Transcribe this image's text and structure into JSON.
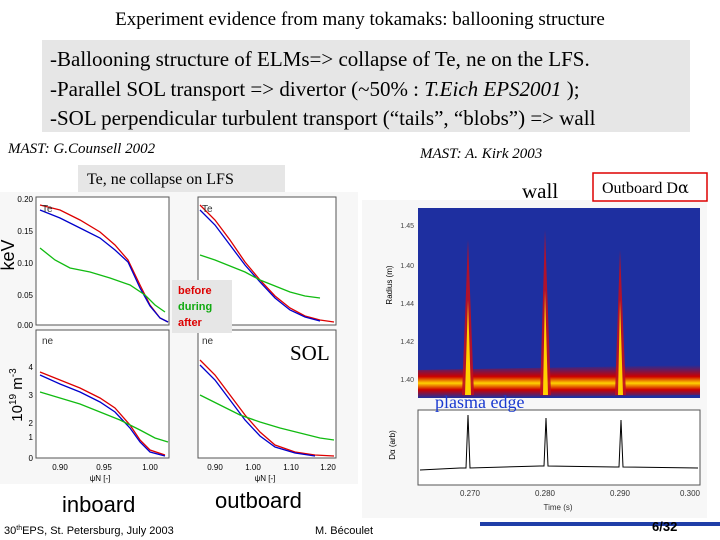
{
  "header": {
    "title": "Experiment evidence from many tokamaks: ballooning structure"
  },
  "summary": {
    "lines": [
      [
        "-Ballooning structure of ELMs=> collapse of Te, ne on the LFS."
      ],
      [
        "-Parallel SOL transport => divertor (~50% : ",
        "T.Eich EPS2001",
        " );"
      ],
      [
        "-SOL perpendicular turbulent transport (“tails”, “blobs”) => wall"
      ]
    ]
  },
  "left": {
    "source": "MAST: G.Counsell 2002",
    "caption": "Te, ne  collapse on LFS",
    "ylabel_top": "keV",
    "ylabel_bottom": [
      "10",
      "19",
      " m",
      "-3"
    ],
    "yticks_top": [
      "0.20",
      "0.15",
      "0.10",
      "0.05",
      "0.00"
    ],
    "yticks_bottom": [
      "4",
      "3",
      "2",
      "1",
      "0"
    ],
    "xticks_left": [
      "0.90",
      "0.95",
      "1.00"
    ],
    "xticks_right": [
      "0.90",
      "1.00",
      "1.10",
      "1.20"
    ],
    "xlabel": "ψN [-]",
    "panel_labels": [
      "Te",
      "Te",
      "ne",
      "ne"
    ],
    "legend": [
      "before",
      "during",
      "after"
    ],
    "sol": "SOL",
    "inboard": "inboard",
    "outboard": "outboard"
  },
  "right": {
    "source": "MAST: A. Kirk 2003",
    "wall": "wall",
    "dalpha": [
      "Outboard D",
      "α"
    ],
    "plasma_edge": "plasma edge",
    "ylabel_top": "Radius (m)",
    "yticks": [
      "1.45",
      "1.40",
      "1.44",
      "1.42",
      "1.40"
    ],
    "ylabel_bottom": "Dα (arb)",
    "xticks": [
      "0.270",
      "0.280",
      "0.290",
      "0.300"
    ],
    "xlabel": "Time (s)"
  },
  "footer": {
    "conference": [
      "30",
      "th",
      "EPS, St. Petersburg, July 2003"
    ],
    "author": "M. Bécoulet",
    "page": "6/32"
  }
}
